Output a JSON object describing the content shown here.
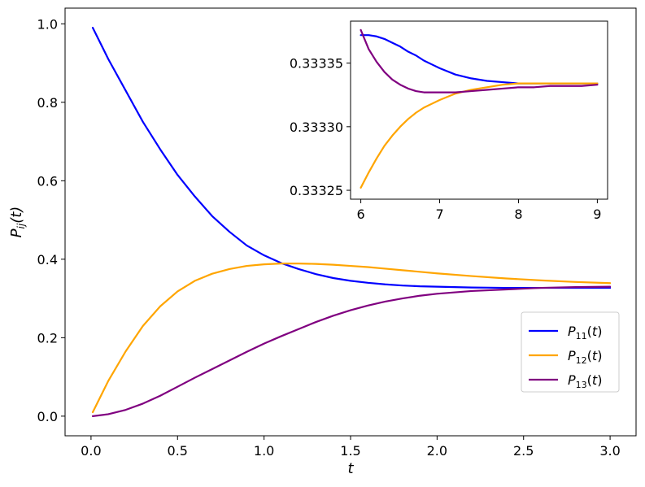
{
  "chart_data": [
    {
      "type": "line",
      "title": "",
      "xlabel": "t",
      "ylabel": "P_ij(t)",
      "xlim": [
        -0.15,
        3.15
      ],
      "ylim": [
        -0.05,
        1.04
      ],
      "xticks": [
        0.0,
        0.5,
        1.0,
        1.5,
        2.0,
        2.5,
        3.0
      ],
      "xtick_labels": [
        "0.0",
        "0.5",
        "1.0",
        "1.5",
        "2.0",
        "2.5",
        "3.0"
      ],
      "yticks": [
        0.0,
        0.2,
        0.4,
        0.6,
        0.8,
        1.0
      ],
      "ytick_labels": [
        "0.0",
        "0.2",
        "0.4",
        "0.6",
        "0.8",
        "1.0"
      ],
      "grid": false,
      "legend_position": "lower-right",
      "x": [
        0.01,
        0.1,
        0.2,
        0.3,
        0.4,
        0.5,
        0.6,
        0.7,
        0.8,
        0.9,
        1.0,
        1.1,
        1.2,
        1.3,
        1.4,
        1.5,
        1.6,
        1.7,
        1.8,
        1.9,
        2.0,
        2.2,
        2.4,
        2.6,
        2.8,
        3.0
      ],
      "series": [
        {
          "name": "P_11(t)",
          "color": "#0000ff",
          "values": [
            0.99,
            0.91,
            0.83,
            0.75,
            0.68,
            0.615,
            0.56,
            0.51,
            0.47,
            0.435,
            0.41,
            0.39,
            0.375,
            0.362,
            0.352,
            0.345,
            0.34,
            0.336,
            0.333,
            0.331,
            0.33,
            0.328,
            0.327,
            0.327,
            0.327,
            0.327
          ]
        },
        {
          "name": "P_12(t)",
          "color": "#ffa500",
          "values": [
            0.01,
            0.09,
            0.165,
            0.23,
            0.28,
            0.318,
            0.345,
            0.363,
            0.375,
            0.383,
            0.387,
            0.389,
            0.389,
            0.388,
            0.386,
            0.383,
            0.38,
            0.376,
            0.372,
            0.368,
            0.364,
            0.357,
            0.351,
            0.346,
            0.342,
            0.339
          ]
        },
        {
          "name": "P_13(t)",
          "color": "#800080",
          "values": [
            0.0,
            0.005,
            0.016,
            0.032,
            0.052,
            0.075,
            0.098,
            0.12,
            0.142,
            0.164,
            0.185,
            0.204,
            0.222,
            0.24,
            0.256,
            0.27,
            0.282,
            0.292,
            0.3,
            0.307,
            0.312,
            0.319,
            0.323,
            0.327,
            0.329,
            0.33
          ]
        }
      ]
    },
    {
      "type": "line",
      "title": "",
      "xlabel": "",
      "ylabel": "",
      "xlim": [
        5.87,
        9.13
      ],
      "ylim": [
        0.333243,
        0.333383
      ],
      "xticks": [
        6,
        7,
        8,
        9
      ],
      "xtick_labels": [
        "6",
        "7",
        "8",
        "9"
      ],
      "yticks": [
        0.33325,
        0.3333,
        0.33335
      ],
      "ytick_labels": [
        "0.33325",
        "0.33330",
        "0.33335"
      ],
      "grid": false,
      "x": [
        6.0,
        6.1,
        6.2,
        6.3,
        6.4,
        6.5,
        6.6,
        6.7,
        6.8,
        6.9,
        7.0,
        7.2,
        7.4,
        7.6,
        7.8,
        8.0,
        8.2,
        8.4,
        8.6,
        8.8,
        9.0
      ],
      "series": [
        {
          "name": "P_11(t)",
          "color": "#0000ff",
          "values": [
            0.333372,
            0.333372,
            0.333371,
            0.333369,
            0.333366,
            0.333363,
            0.333359,
            0.333356,
            0.333352,
            0.333349,
            0.333346,
            0.333341,
            0.333338,
            0.333336,
            0.333335,
            0.333334,
            0.333334,
            0.333334,
            0.333334,
            0.333334,
            0.333334
          ]
        },
        {
          "name": "P_12(t)",
          "color": "#ffa500",
          "values": [
            0.333252,
            0.333264,
            0.333275,
            0.333285,
            0.333293,
            0.3333,
            0.333306,
            0.333311,
            0.333315,
            0.333318,
            0.333321,
            0.333326,
            0.333329,
            0.333331,
            0.333333,
            0.333334,
            0.333334,
            0.333334,
            0.333334,
            0.333334,
            0.333334
          ]
        },
        {
          "name": "P_13(t)",
          "color": "#800080",
          "values": [
            0.333376,
            0.333361,
            0.333351,
            0.333343,
            0.333337,
            0.333333,
            0.33333,
            0.333328,
            0.333327,
            0.333327,
            0.333327,
            0.333327,
            0.333328,
            0.333329,
            0.33333,
            0.333331,
            0.333331,
            0.333332,
            0.333332,
            0.333332,
            0.333333
          ]
        }
      ]
    }
  ]
}
